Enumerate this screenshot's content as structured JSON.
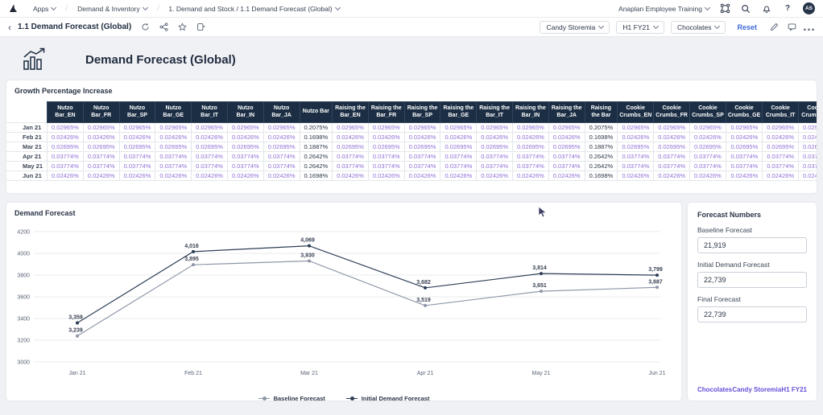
{
  "navbar": {
    "apps_label": "Apps",
    "category_label": "Demand & Inventory",
    "page_path_label": "1. Demand and Stock / 1.1 Demand Forecast (Global)",
    "account_label": "Anaplan Employee Training",
    "avatar_initials": "AS"
  },
  "toolbar": {
    "title": "1.1 Demand Forecast (Global)",
    "selectors": [
      "Candy Storemia",
      "H1 FY21",
      "Chocolates"
    ],
    "reset_label": "Reset"
  },
  "page_header": {
    "title": "Demand Forecast (Global)"
  },
  "growth_table": {
    "title": "Growth Percentage Increase",
    "groups": [
      {
        "name": "Nutzo Bar",
        "suffixes": [
          "EN",
          "FR",
          "SP",
          "GE",
          "IT",
          "IN",
          "JA"
        ]
      },
      {
        "name": "Raising the Bar",
        "suffixes": [
          "EN",
          "FR",
          "SP",
          "GE",
          "IT",
          "IN",
          "JA"
        ]
      },
      {
        "name": "Cookie Crumbs",
        "suffixes": [
          "EN",
          "FR",
          "SP",
          "GE",
          "IT",
          "IN",
          "JA"
        ]
      }
    ],
    "rows": [
      {
        "label": "Jan 21",
        "detail_value": "0.02965%",
        "aggregate_value": "0.2075%"
      },
      {
        "label": "Feb 21",
        "detail_value": "0.02426%",
        "aggregate_value": "0.1698%"
      },
      {
        "label": "Mar 21",
        "detail_value": "0.02695%",
        "aggregate_value": "0.1887%"
      },
      {
        "label": "Apr 21",
        "detail_value": "0.03774%",
        "aggregate_value": "0.2642%"
      },
      {
        "label": "May 21",
        "detail_value": "0.03774%",
        "aggregate_value": "0.2642%"
      },
      {
        "label": "Jun 21",
        "detail_value": "0.02426%",
        "aggregate_value": "0.1698%"
      }
    ]
  },
  "chart_data": {
    "type": "line",
    "title": "Demand Forecast",
    "x": [
      "Jan 21",
      "Feb 21",
      "Mar 21",
      "Apr 21",
      "May 21",
      "Jun 21"
    ],
    "series": [
      {
        "name": "Baseline Forecast",
        "color": "#8e97a8",
        "values": [
          3239,
          3895,
          3930,
          3519,
          3651,
          3687
        ]
      },
      {
        "name": "Initial Demand Forecast",
        "color": "#2c3e55",
        "values": [
          3359,
          4016,
          4069,
          3682,
          3814,
          3799
        ]
      }
    ],
    "ylim": [
      3000,
      4200
    ],
    "yticks": [
      3000,
      3200,
      3400,
      3600,
      3800,
      4000,
      4200
    ],
    "grid": true,
    "legend_position": "bottom"
  },
  "forecast_panel": {
    "title": "Forecast Numbers",
    "fields": [
      {
        "label": "Baseline Forecast",
        "value": "21,919"
      },
      {
        "label": "Initial Demand Forecast",
        "value": "22,739"
      },
      {
        "label": "Final Forecast",
        "value": "22,739"
      }
    ],
    "links": [
      "Chocolates",
      "Candy Storemia",
      "H1 FY21"
    ]
  },
  "colors": {
    "accent_blue": "#3f6bd8",
    "link_purple": "#6450d8",
    "table_header_bg": "#1b2e44",
    "detail_value": "#8f6fd6",
    "aggregate_value": "#2b3648",
    "grid_line": "#e9ebee",
    "axis_text": "#5a6477"
  }
}
